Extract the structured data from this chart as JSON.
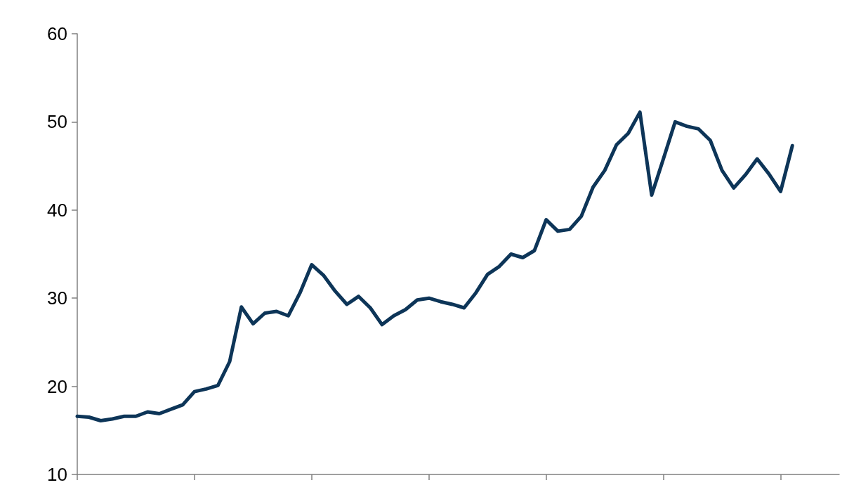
{
  "chart_data": {
    "type": "line",
    "categories": [
      null,
      null,
      null,
      null,
      null,
      null,
      null,
      null,
      null,
      null,
      null,
      null,
      null,
      null,
      null,
      null,
      null,
      null,
      null,
      null,
      null,
      null,
      null,
      null,
      null,
      null,
      null,
      null,
      null,
      null,
      null,
      null,
      null,
      null,
      null,
      null,
      null,
      null,
      null,
      null,
      null,
      null,
      null,
      null,
      null,
      null,
      null,
      null,
      null,
      null,
      null,
      null,
      null,
      null,
      null,
      null,
      null,
      null,
      null,
      null,
      null,
      null,
      null,
      null,
      null,
      null
    ],
    "series": [
      {
        "color": "#0d3558",
        "values": [
          16.6,
          16.5,
          16.1,
          16.3,
          16.6,
          16.6,
          17.1,
          16.9,
          17.4,
          17.9,
          19.4,
          19.7,
          20.1,
          22.8,
          29.0,
          27.1,
          28.3,
          28.5,
          28.0,
          30.6,
          33.8,
          32.6,
          30.8,
          29.3,
          30.2,
          28.9,
          27.0,
          28.0,
          28.7,
          29.8,
          30.0,
          29.6,
          29.3,
          28.9,
          30.6,
          32.7,
          33.6,
          35.0,
          34.6,
          35.4,
          38.9,
          37.6,
          37.8,
          39.3,
          42.6,
          44.5,
          47.4,
          48.7,
          51.1,
          41.7,
          45.8,
          50.0,
          49.5,
          49.2,
          47.9,
          44.5,
          42.5,
          44.0,
          45.8,
          44.1,
          42.1,
          47.3,
          null,
          null,
          null,
          null
        ]
      }
    ],
    "ylim": [
      10,
      60
    ],
    "yticks": [
      10,
      20,
      30,
      40,
      50,
      60
    ],
    "grid": false,
    "marker": "none",
    "line_style": "solid"
  }
}
